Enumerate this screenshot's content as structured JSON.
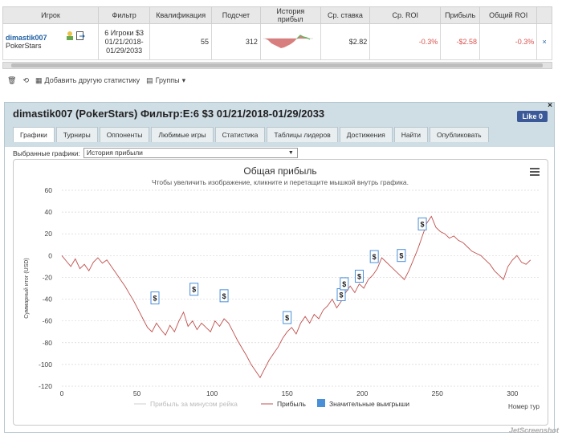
{
  "table": {
    "headers": [
      "Игрок",
      "Фильтр",
      "Квалификация",
      "Подсчет",
      "История прибыл",
      "Ср. ставка",
      "Ср. ROI",
      "Прибыль",
      "Общий ROI"
    ],
    "row": {
      "player": "dimastik007",
      "site": "PokerStars",
      "filter": "6 Игроки $3 01/21/2018-01/29/2033",
      "qualification": "55",
      "count": "312",
      "avg_stake": "$2.82",
      "avg_roi": "-0.3%",
      "profit": "-$2.58",
      "total_roi": "-0.3%"
    }
  },
  "footer": {
    "add_stats": "Добавить другую статистику",
    "groups": "Группы"
  },
  "panel": {
    "title": "dimastik007 (PokerStars) Фильтр:E:6 $3 01/21/2018-01/29/2033",
    "like": "Like 0",
    "tabs": [
      "Графики",
      "Турниры",
      "Оппоненты",
      "Любимые игры",
      "Статистика",
      "Таблицы лидеров",
      "Достижения",
      "Найти",
      "Опубликовать"
    ],
    "select_label": "Выбранные графики:",
    "select_value": "История прибыли"
  },
  "chart_data": {
    "type": "line",
    "title": "Общая прибыль",
    "subtitle": "Чтобы увеличить изображение, кликните и перетащите мышкой внутрь графика.",
    "ylabel": "Суммарный итог (USD)",
    "xlabel": "Номер тур",
    "xlim": [
      0,
      318
    ],
    "ylim": [
      -120,
      60
    ],
    "xticks": [
      0,
      50,
      100,
      150,
      200,
      250,
      300
    ],
    "yticks": [
      60,
      40,
      20,
      0,
      -20,
      -40,
      -60,
      -80,
      -100,
      -120
    ],
    "series": [
      {
        "name": "Прибыль за минусом рейка",
        "color": "#cfcfcf"
      },
      {
        "name": "Прибыль",
        "color": "#c0504d",
        "x": [
          0,
          3,
          6,
          9,
          12,
          15,
          18,
          21,
          24,
          27,
          30,
          33,
          36,
          39,
          42,
          45,
          48,
          51,
          54,
          57,
          60,
          63,
          66,
          69,
          72,
          75,
          78,
          81,
          84,
          87,
          90,
          93,
          96,
          99,
          102,
          105,
          108,
          111,
          114,
          117,
          120,
          123,
          126,
          129,
          132,
          135,
          138,
          141,
          144,
          147,
          150,
          153,
          156,
          159,
          162,
          165,
          168,
          171,
          174,
          177,
          180,
          183,
          186,
          189,
          192,
          195,
          198,
          201,
          204,
          207,
          210,
          213,
          216,
          219,
          222,
          225,
          228,
          231,
          234,
          237,
          240,
          243,
          246,
          249,
          252,
          255,
          258,
          261,
          264,
          267,
          270,
          273,
          276,
          279,
          282,
          285,
          288,
          291,
          294,
          297,
          300,
          303,
          306,
          309,
          312
        ],
        "values": [
          0,
          -5,
          -10,
          -3,
          -12,
          -8,
          -14,
          -6,
          -2,
          -7,
          -4,
          -10,
          -16,
          -22,
          -28,
          -35,
          -42,
          -50,
          -58,
          -66,
          -70,
          -62,
          -68,
          -73,
          -64,
          -70,
          -60,
          -52,
          -65,
          -60,
          -68,
          -62,
          -66,
          -70,
          -60,
          -65,
          -58,
          -62,
          -70,
          -78,
          -85,
          -92,
          -100,
          -106,
          -112,
          -104,
          -96,
          -90,
          -84,
          -76,
          -70,
          -66,
          -72,
          -62,
          -56,
          -62,
          -54,
          -58,
          -50,
          -46,
          -40,
          -48,
          -42,
          -34,
          -28,
          -34,
          -26,
          -30,
          -22,
          -18,
          -12,
          -2,
          -6,
          -10,
          -14,
          -18,
          -22,
          -14,
          -4,
          6,
          18,
          30,
          36,
          26,
          22,
          20,
          16,
          18,
          14,
          12,
          8,
          4,
          2,
          0,
          -4,
          -8,
          -14,
          -18,
          -22,
          -10,
          -4,
          0,
          -6,
          -8,
          -4
        ]
      },
      {
        "name": "Значительные выигрыши",
        "color": "#4a90d9",
        "x": [
          62,
          88,
          108,
          150,
          186,
          188,
          198,
          208,
          226,
          240
        ],
        "values": [
          -40,
          -32,
          -38,
          -58,
          -37,
          -27,
          -20,
          -2,
          -1,
          28
        ]
      }
    ],
    "legend_position": "bottom"
  },
  "watermark": "JetScreenshot"
}
